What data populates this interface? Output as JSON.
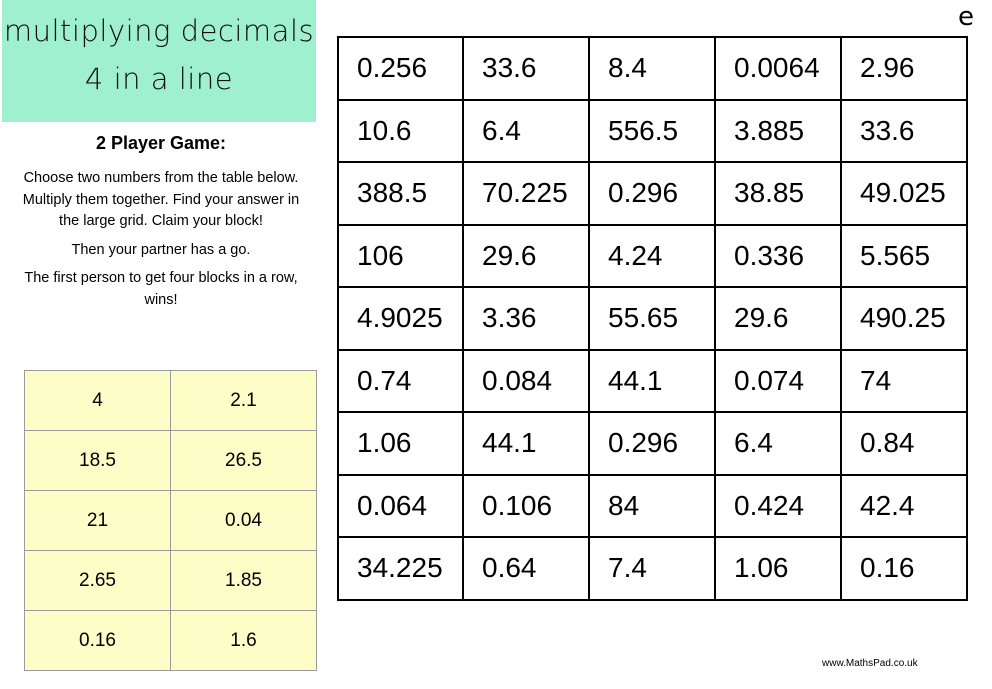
{
  "title": {
    "line1": "multiplying decimals",
    "line2": "4 in a line"
  },
  "corner_letter": "e",
  "game": {
    "heading": "2 Player Game:",
    "instructions": [
      "Choose two numbers from the table below. Multiply them together. Find your answer in the large grid. Claim your block!",
      "Then your partner has a go.",
      "The first person to get four blocks in a row, wins!"
    ]
  },
  "number_table": [
    [
      "4",
      "2.1"
    ],
    [
      "18.5",
      "26.5"
    ],
    [
      "21",
      "0.04"
    ],
    [
      "2.65",
      "1.85"
    ],
    [
      "0.16",
      "1.6"
    ]
  ],
  "answer_grid": [
    [
      "0.256",
      "33.6",
      "8.4",
      "0.0064",
      "2.96"
    ],
    [
      "10.6",
      "6.4",
      "556.5",
      "3.885",
      "33.6"
    ],
    [
      "388.5",
      "70.225",
      "0.296",
      "38.85",
      "49.025"
    ],
    [
      "106",
      "29.6",
      "4.24",
      "0.336",
      "5.565"
    ],
    [
      "4.9025",
      "3.36",
      "55.65",
      "29.6",
      "490.25"
    ],
    [
      "0.74",
      "0.084",
      "44.1",
      "0.074",
      "74"
    ],
    [
      "1.06",
      "44.1",
      "0.296",
      "6.4",
      "0.84"
    ],
    [
      "0.064",
      "0.106",
      "84",
      "0.424",
      "42.4"
    ],
    [
      "34.225",
      "0.64",
      "7.4",
      "1.06",
      "0.16"
    ]
  ],
  "credit": "www.MathsPad.co.uk",
  "colors": {
    "title_bg": "#9ff0cf",
    "table_bg": "#fdfdc7"
  }
}
